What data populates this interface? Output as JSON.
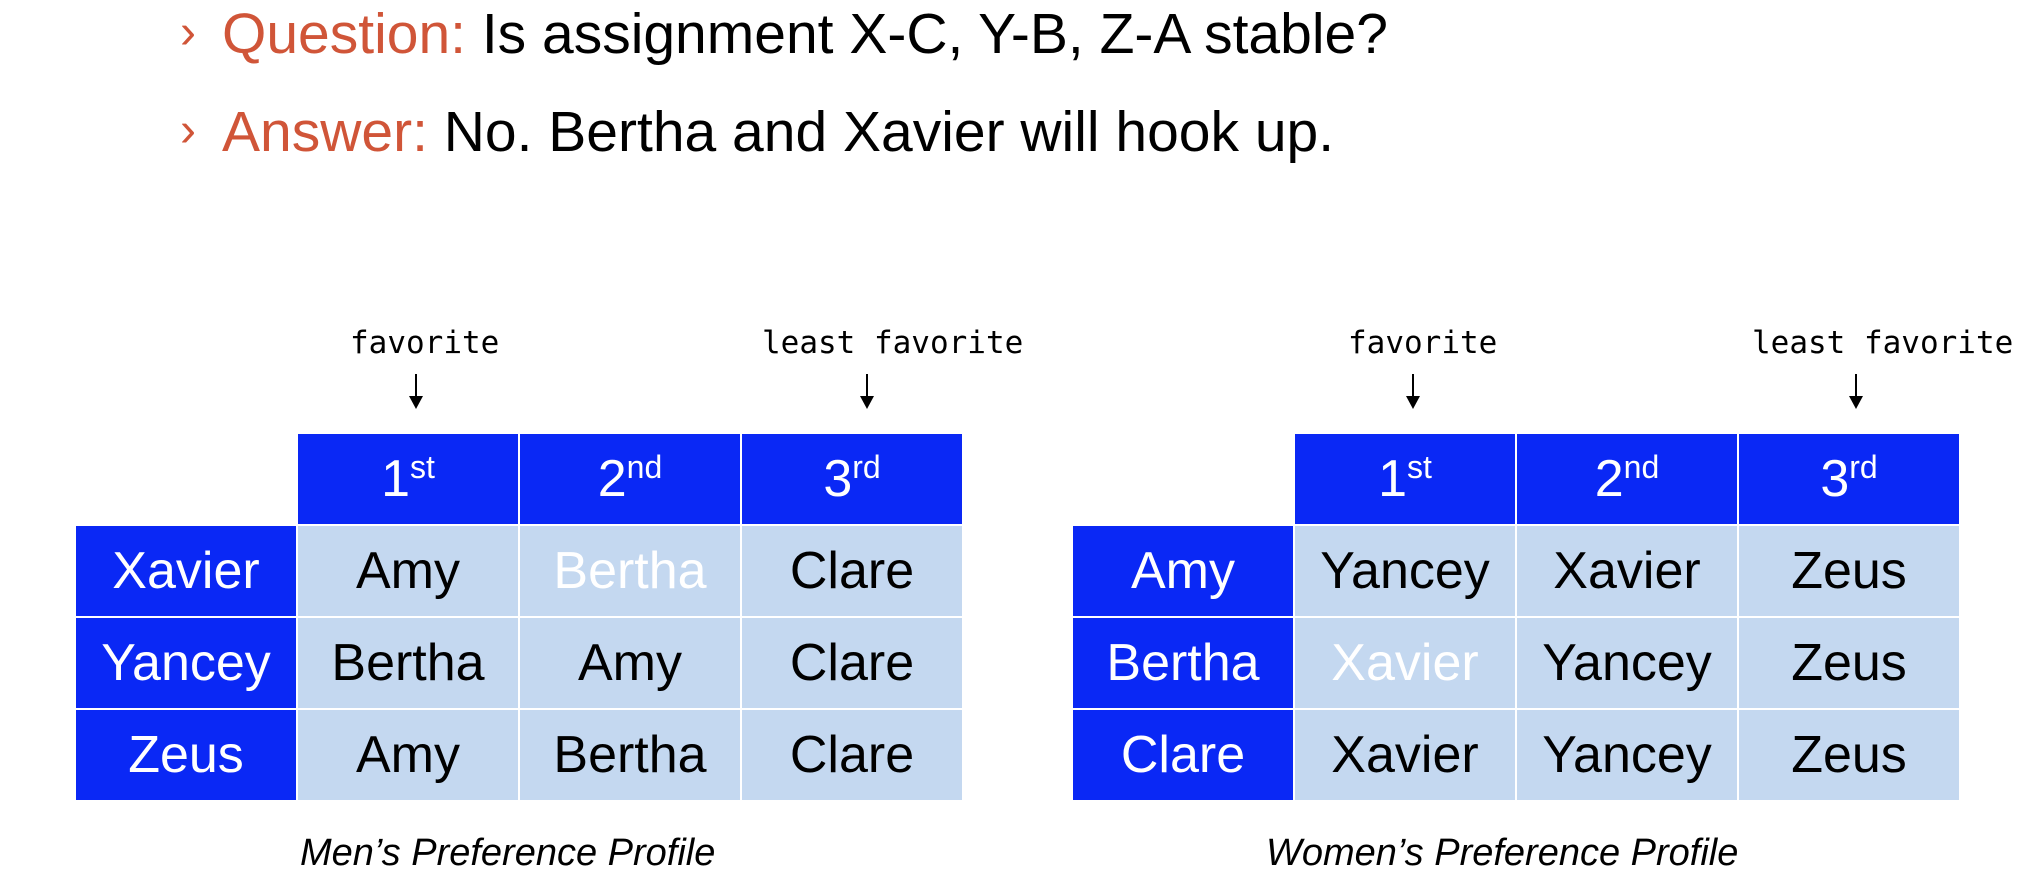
{
  "bullets": [
    {
      "glyph": "›",
      "keyword": "Question:",
      "text": " Is assignment X-C, Y-B, Z-A stable?"
    },
    {
      "glyph": "›",
      "keyword": "Answer:",
      "text": " No.  Bertha and Xavier will hook up."
    }
  ],
  "annotations": {
    "favorite": "favorite",
    "least_favorite": "least favorite"
  },
  "rank_headers": [
    {
      "num": "1",
      "suffix": "st"
    },
    {
      "num": "2",
      "suffix": "nd"
    },
    {
      "num": "3",
      "suffix": "rd"
    }
  ],
  "men": {
    "caption": "Men’s Preference Profile",
    "rows": [
      {
        "name": "Xavier",
        "prefs": [
          "Amy",
          "Bertha",
          "Clare"
        ]
      },
      {
        "name": "Yancey",
        "prefs": [
          "Bertha",
          "Amy",
          "Clare"
        ]
      },
      {
        "name": "Zeus",
        "prefs": [
          "Amy",
          "Bertha",
          "Clare"
        ]
      }
    ]
  },
  "women": {
    "caption": "Women’s Preference Profile",
    "rows": [
      {
        "name": "Amy",
        "prefs": [
          "Yancey",
          "Xavier",
          "Zeus"
        ]
      },
      {
        "name": "Bertha",
        "prefs": [
          "Xavier",
          "Yancey",
          "Zeus"
        ]
      },
      {
        "name": "Clare",
        "prefs": [
          "Xavier",
          "Yancey",
          "Zeus"
        ]
      }
    ]
  },
  "colors": {
    "accent": "#d05538",
    "header_blue": "#0a28f5",
    "cell_light_blue": "#c4d8f0",
    "highlight_text": "#ffffff"
  }
}
